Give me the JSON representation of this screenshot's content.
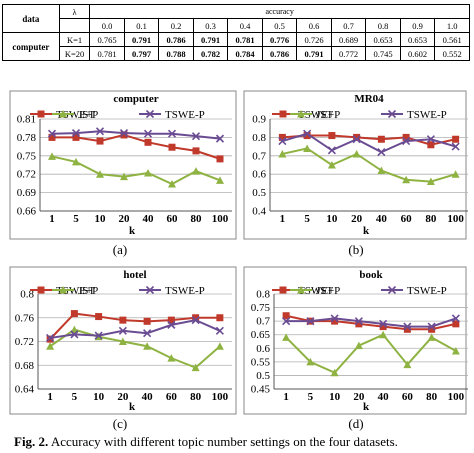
{
  "table": {
    "col_header_left": "data",
    "lambda_symbol": "λ",
    "accuracy_label": "accuracy",
    "lambdas": [
      "0.0",
      "0.1",
      "0.2",
      "0.3",
      "0.4",
      "0.5",
      "0.6",
      "0.7",
      "0.8",
      "0.9",
      "1.0"
    ],
    "dataset": "computer",
    "rows": [
      {
        "k": "K=1",
        "values": [
          "0.765",
          "0.791",
          "0.786",
          "0.791",
          "0.781",
          "0.776",
          "0.726",
          "0.689",
          "0.653",
          "0.653",
          "0.561"
        ],
        "bold": [
          false,
          true,
          true,
          true,
          true,
          true,
          false,
          false,
          false,
          false,
          false
        ]
      },
      {
        "k": "K=20",
        "values": [
          "0.781",
          "0.797",
          "0.788",
          "0.782",
          "0.784",
          "0.786",
          "0.791",
          "0.772",
          "0.745",
          "0.602",
          "0.552"
        ],
        "bold": [
          false,
          true,
          true,
          true,
          true,
          true,
          true,
          false,
          false,
          false,
          false
        ]
      }
    ]
  },
  "colors": {
    "tswe_p_plus": "#c0392b",
    "jst": "#8fb342",
    "tswe_p_minus": "#6a4c93"
  },
  "chart_data": [
    {
      "type": "line",
      "title": "computer",
      "xlabel": "k",
      "panel_label": "(a)",
      "categories": [
        "1",
        "5",
        "10",
        "20",
        "40",
        "60",
        "80",
        "100"
      ],
      "ylim": [
        0.66,
        0.81
      ],
      "yticks": [
        "0.66",
        "0.69",
        "0.72",
        "0.75",
        "0.78",
        "0.81"
      ],
      "legend": "top",
      "series": [
        {
          "name": "TSWE+P",
          "marker": "square",
          "values": [
            0.78,
            0.78,
            0.774,
            0.784,
            0.772,
            0.764,
            0.758,
            0.745
          ]
        },
        {
          "name": "JST",
          "marker": "triangle",
          "values": [
            0.749,
            0.74,
            0.72,
            0.716,
            0.722,
            0.704,
            0.725,
            0.71
          ]
        },
        {
          "name": "TSWE-P",
          "marker": "x",
          "values": [
            0.786,
            0.787,
            0.79,
            0.787,
            0.786,
            0.786,
            0.782,
            0.778
          ]
        }
      ]
    },
    {
      "type": "line",
      "title": "MR04",
      "xlabel": "k",
      "panel_label": "(b)",
      "categories": [
        "1",
        "5",
        "10",
        "20",
        "40",
        "60",
        "80",
        "100"
      ],
      "ylim": [
        0.4,
        0.9
      ],
      "yticks": [
        "0.4",
        "0.5",
        "0.6",
        "0.7",
        "0.8",
        "0.9"
      ],
      "legend": "top",
      "series": [
        {
          "name": "TSWE+P",
          "marker": "square",
          "values": [
            0.8,
            0.81,
            0.81,
            0.8,
            0.79,
            0.8,
            0.76,
            0.79
          ]
        },
        {
          "name": "JST",
          "marker": "triangle",
          "values": [
            0.71,
            0.74,
            0.65,
            0.71,
            0.62,
            0.57,
            0.56,
            0.6
          ]
        },
        {
          "name": "TSWE-P",
          "marker": "x",
          "values": [
            0.78,
            0.82,
            0.73,
            0.79,
            0.72,
            0.78,
            0.79,
            0.75
          ]
        }
      ]
    },
    {
      "type": "line",
      "title": "hotel",
      "xlabel": "k",
      "panel_label": "(c)",
      "categories": [
        "1",
        "5",
        "10",
        "20",
        "40",
        "60",
        "80",
        "100"
      ],
      "ylim": [
        0.64,
        0.8
      ],
      "yticks": [
        "0.64",
        "0.68",
        "0.72",
        "0.76",
        "0.8"
      ],
      "legend": "top",
      "series": [
        {
          "name": "TSWE+P",
          "marker": "square",
          "values": [
            0.724,
            0.767,
            0.762,
            0.756,
            0.754,
            0.756,
            0.76,
            0.76
          ]
        },
        {
          "name": "JST",
          "marker": "triangle",
          "values": [
            0.712,
            0.74,
            0.728,
            0.72,
            0.712,
            0.692,
            0.676,
            0.712
          ]
        },
        {
          "name": "TSWE-P",
          "marker": "x",
          "values": [
            0.726,
            0.732,
            0.73,
            0.738,
            0.734,
            0.748,
            0.756,
            0.738
          ]
        }
      ]
    },
    {
      "type": "line",
      "title": "book",
      "xlabel": "k",
      "panel_label": "(d)",
      "categories": [
        "1",
        "5",
        "10",
        "20",
        "40",
        "60",
        "80",
        "100"
      ],
      "ylim": [
        0.45,
        0.8
      ],
      "yticks": [
        "0.45",
        "0.5",
        "0.55",
        "0.6",
        "0.65",
        "0.7",
        "0.75",
        "0.8"
      ],
      "legend": "top",
      "series": [
        {
          "name": "TSWE+P",
          "marker": "square",
          "values": [
            0.72,
            0.7,
            0.7,
            0.69,
            0.68,
            0.67,
            0.67,
            0.69
          ]
        },
        {
          "name": "JST",
          "marker": "triangle",
          "values": [
            0.64,
            0.55,
            0.51,
            0.61,
            0.65,
            0.54,
            0.64,
            0.59
          ]
        },
        {
          "name": "TSWE-P",
          "marker": "x",
          "values": [
            0.7,
            0.7,
            0.71,
            0.7,
            0.69,
            0.68,
            0.68,
            0.71
          ]
        }
      ]
    }
  ],
  "caption": {
    "fig_label": "Fig. 2.",
    "text": " Accuracy with different topic number settings on the four datasets."
  }
}
